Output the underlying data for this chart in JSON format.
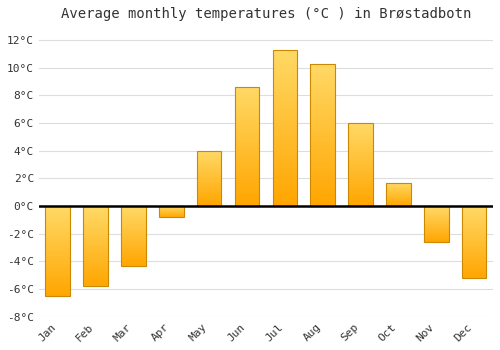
{
  "title": "Average monthly temperatures (°C ) in Brøstadbotn",
  "months": [
    "Jan",
    "Feb",
    "Mar",
    "Apr",
    "May",
    "Jun",
    "Jul",
    "Aug",
    "Sep",
    "Oct",
    "Nov",
    "Dec"
  ],
  "temperatures": [
    -6.5,
    -5.8,
    -4.3,
    -0.8,
    4.0,
    8.6,
    11.3,
    10.3,
    6.0,
    1.7,
    -2.6,
    -5.2
  ],
  "bar_color_top": "#FFD966",
  "bar_color_bottom": "#FFA500",
  "bar_edge_color": "#CC8800",
  "ylim": [
    -8,
    13
  ],
  "yticks": [
    -8,
    -6,
    -4,
    -2,
    0,
    2,
    4,
    6,
    8,
    10,
    12
  ],
  "ytick_labels": [
    "-8°C",
    "-6°C",
    "-4°C",
    "-2°C",
    "0°C",
    "2°C",
    "4°C",
    "6°C",
    "8°C",
    "10°C",
    "12°C"
  ],
  "background_color": "#ffffff",
  "plot_bg_color": "#ffffff",
  "grid_color": "#dddddd",
  "zero_line_color": "#000000",
  "title_fontsize": 10,
  "tick_fontsize": 8,
  "bar_width": 0.65
}
